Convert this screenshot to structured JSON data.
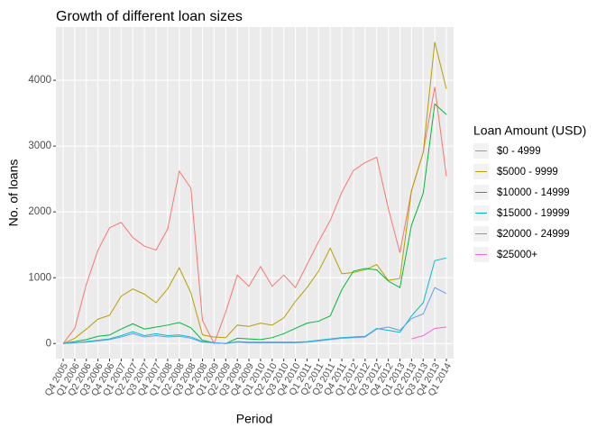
{
  "chart_data": {
    "type": "line",
    "title": "Growth of different loan sizes",
    "x_label": "Period",
    "y_label": "No. of loans",
    "legend_title": "Loan Amount (USD)",
    "legend_position": "right",
    "grid": true,
    "categories": [
      "Q4 2005",
      "Q1 2006",
      "Q2 2006",
      "Q3 2006",
      "Q4 2006",
      "Q1 2007",
      "Q2 2007",
      "Q3 2007",
      "Q4 2007",
      "Q1 2008",
      "Q2 2008",
      "Q3 2008",
      "Q4 2008",
      "Q1 2009",
      "Q2 2009",
      "Q3 2009",
      "Q4 2009",
      "Q1 2010",
      "Q2 2010",
      "Q3 2010",
      "Q4 2010",
      "Q1 2011",
      "Q2 2011",
      "Q3 2011",
      "Q4 2011",
      "Q1 2012",
      "Q2 2012",
      "Q3 2012",
      "Q4 2012",
      "Q1 2013",
      "Q2 2013",
      "Q3 2013",
      "Q4 2013",
      "Q1 2014"
    ],
    "ylim": [
      -229,
      4809
    ],
    "yticks": [
      0,
      1000,
      2000,
      3000,
      4000
    ],
    "series": [
      {
        "name": "$0 - 4999",
        "color": "#F8766D",
        "values": [
          0,
          230,
          900,
          1420,
          1760,
          1840,
          1610,
          1480,
          1420,
          1740,
          2620,
          2360,
          350,
          0,
          480,
          1040,
          870,
          1170,
          870,
          1040,
          850,
          1200,
          1550,
          1870,
          2300,
          2630,
          2750,
          2830,
          2050,
          1380,
          2330,
          2900,
          3900,
          2540
        ]
      },
      {
        "name": "$5000 - 9999",
        "color": "#B79F00",
        "values": [
          0,
          80,
          220,
          370,
          430,
          720,
          830,
          750,
          620,
          830,
          1150,
          770,
          130,
          100,
          90,
          280,
          260,
          310,
          280,
          390,
          640,
          850,
          1100,
          1450,
          1060,
          1080,
          1120,
          1200,
          960,
          990,
          2320,
          2900,
          4580,
          3870
        ]
      },
      {
        "name": "$10000 - 14999",
        "color": "#00BA38",
        "values": [
          0,
          30,
          60,
          110,
          130,
          220,
          300,
          220,
          250,
          280,
          320,
          240,
          50,
          10,
          0,
          80,
          70,
          60,
          90,
          150,
          230,
          310,
          340,
          420,
          820,
          1100,
          1140,
          1120,
          950,
          850,
          1800,
          2280,
          3640,
          3480
        ]
      },
      {
        "name": "$15000 - 19999",
        "color": "#00BFC4",
        "values": [
          0,
          10,
          30,
          50,
          70,
          120,
          180,
          120,
          150,
          120,
          130,
          100,
          30,
          10,
          0,
          30,
          20,
          20,
          20,
          20,
          20,
          30,
          50,
          70,
          90,
          100,
          110,
          230,
          200,
          170,
          420,
          620,
          1260,
          1300
        ]
      },
      {
        "name": "$20000 - 24999",
        "color": "#619CFF",
        "values": [
          0,
          10,
          20,
          40,
          60,
          100,
          150,
          100,
          120,
          100,
          110,
          80,
          20,
          10,
          0,
          20,
          10,
          10,
          10,
          10,
          10,
          20,
          40,
          60,
          80,
          90,
          100,
          220,
          250,
          200,
          380,
          450,
          850,
          760
        ]
      },
      {
        "name": "$25000+",
        "color": "#F564E3",
        "values": [
          null,
          null,
          null,
          null,
          null,
          null,
          null,
          null,
          null,
          null,
          null,
          null,
          null,
          null,
          null,
          null,
          null,
          null,
          null,
          null,
          null,
          null,
          null,
          null,
          null,
          null,
          null,
          null,
          null,
          null,
          70,
          120,
          230,
          250
        ]
      }
    ]
  }
}
